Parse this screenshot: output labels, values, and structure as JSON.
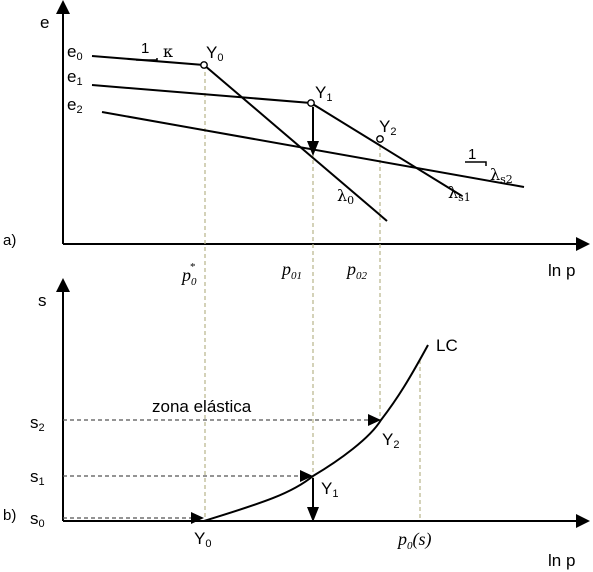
{
  "panel_a": {
    "panel_label": "a)",
    "y_axis_label": "e",
    "x_axis_label": "ln p",
    "e0": {
      "base": "e",
      "sub": "0"
    },
    "e1": {
      "base": "e",
      "sub": "1"
    },
    "e2": {
      "base": "e",
      "sub": "2"
    },
    "Y0": {
      "base": "Y",
      "sub": "0"
    },
    "Y1": {
      "base": "Y",
      "sub": "1"
    },
    "Y2": {
      "base": "Y",
      "sub": "2"
    },
    "kappa_slope": {
      "one": "1",
      "symbol": "κ"
    },
    "lambda0": {
      "base": "λ",
      "sub": "0"
    },
    "lambda_s1": {
      "base": "λ",
      "sub": "s1"
    },
    "lambda_s2": {
      "one": "1",
      "base": "λ",
      "sub": "s2"
    },
    "p0_star": {
      "base": "p",
      "sub": "0",
      "sup": "*"
    },
    "p01": {
      "base": "p",
      "sub": "01"
    },
    "p02": {
      "base": "p",
      "sub": "02"
    }
  },
  "panel_b": {
    "panel_label": "b)",
    "y_axis_label": "s",
    "x_axis_label": "ln p",
    "s0": {
      "base": "s",
      "sub": "0"
    },
    "s1": {
      "base": "s",
      "sub": "1"
    },
    "s2": {
      "base": "s",
      "sub": "2"
    },
    "Y0": {
      "base": "Y",
      "sub": "0"
    },
    "Y1": {
      "base": "Y",
      "sub": "1"
    },
    "Y2": {
      "base": "Y",
      "sub": "2"
    },
    "LC": "LC",
    "zona": "zona elástica",
    "p0s": {
      "base": "p",
      "sub": "0",
      "arg": "(s)"
    }
  },
  "colors": {
    "axis": "#000000",
    "guide": "#b8b48a",
    "dash": "#555555"
  }
}
